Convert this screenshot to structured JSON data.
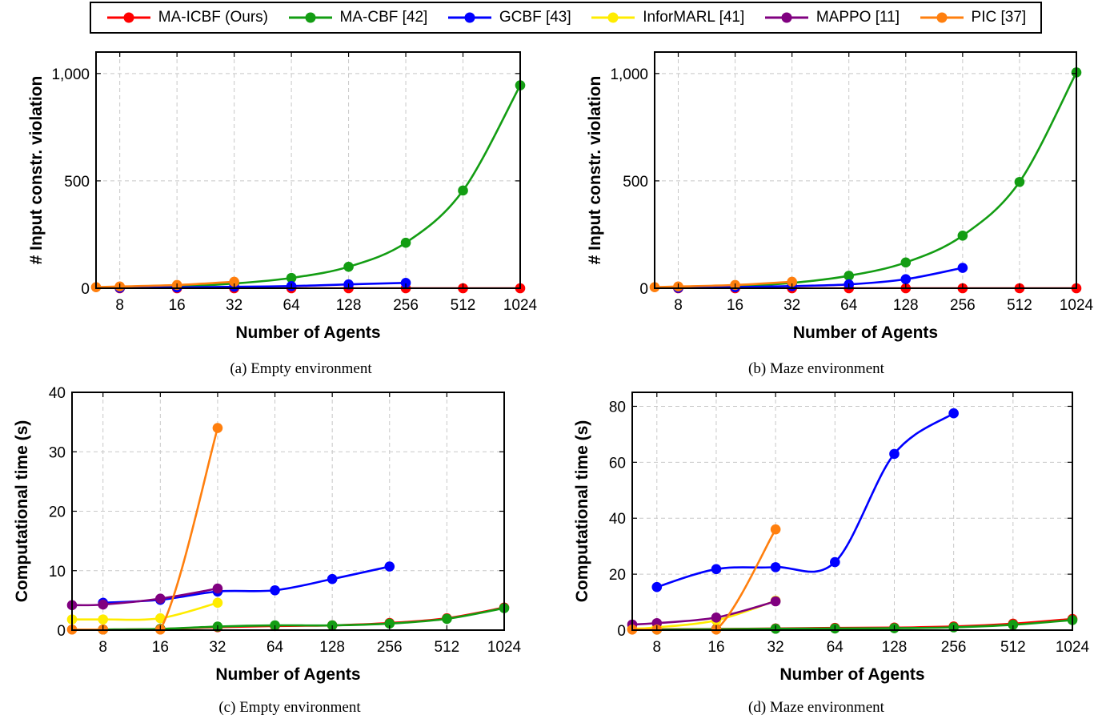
{
  "legend": [
    {
      "name": "MA-ICBF (Ours)",
      "color": "#ff0000"
    },
    {
      "name": "MA-CBF [42]",
      "color": "#139d13"
    },
    {
      "name": "GCBF [43]",
      "color": "#0000ff"
    },
    {
      "name": "InforMARL [41]",
      "color": "#ffec00"
    },
    {
      "name": "MAPPO [11]",
      "color": "#800080"
    },
    {
      "name": "PIC [37]",
      "color": "#ff7f0e"
    }
  ],
  "captions": {
    "a": "(a) Empty environment",
    "b": "(b) Maze environment",
    "c": "(c) Empty environment",
    "d": "(d) Maze environment"
  },
  "chart_data": [
    {
      "id": "a",
      "type": "line",
      "title": "",
      "xlabel": "Number of Agents",
      "ylabel": "# Input constr. violation",
      "xscale": "log2",
      "x_ticks": [
        8,
        16,
        32,
        64,
        128,
        256,
        512,
        1024
      ],
      "xlim": [
        6,
        1024
      ],
      "ylim": [
        0,
        1100
      ],
      "y_ticks": [
        0,
        500,
        1000
      ],
      "y_tick_labels": [
        "0",
        "500",
        "1,000"
      ],
      "grid": true,
      "series": [
        {
          "name": "MA-ICBF (Ours)",
          "color": "#ff0000",
          "x": [
            8,
            16,
            32,
            64,
            128,
            256,
            512,
            1024
          ],
          "y": [
            0,
            0,
            0,
            0,
            0,
            0,
            0,
            0
          ]
        },
        {
          "name": "MA-CBF [42]",
          "color": "#139d13",
          "x": [
            8,
            16,
            32,
            64,
            128,
            256,
            512,
            1024
          ],
          "y": [
            3,
            8,
            22,
            48,
            100,
            212,
            455,
            945
          ]
        },
        {
          "name": "GCBF [43]",
          "color": "#0000ff",
          "x": [
            8,
            16,
            32,
            64,
            128,
            256
          ],
          "y": [
            2,
            4,
            7,
            10,
            18,
            25
          ]
        },
        {
          "name": "PIC [37]",
          "color": "#ff7f0e",
          "x": [
            6,
            8,
            16,
            32
          ],
          "y": [
            5,
            8,
            15,
            30
          ]
        }
      ]
    },
    {
      "id": "b",
      "type": "line",
      "title": "",
      "xlabel": "Number of Agents",
      "ylabel": "# Input constr. violation",
      "xscale": "log2",
      "x_ticks": [
        8,
        16,
        32,
        64,
        128,
        256,
        512,
        1024
      ],
      "xlim": [
        6,
        1024
      ],
      "ylim": [
        0,
        1100
      ],
      "y_ticks": [
        0,
        500,
        1000
      ],
      "y_tick_labels": [
        "0",
        "500",
        "1,000"
      ],
      "grid": true,
      "series": [
        {
          "name": "MA-ICBF (Ours)",
          "color": "#ff0000",
          "x": [
            8,
            16,
            32,
            64,
            128,
            256,
            512,
            1024
          ],
          "y": [
            0,
            0,
            0,
            0,
            0,
            0,
            0,
            0
          ]
        },
        {
          "name": "MA-CBF [42]",
          "color": "#139d13",
          "x": [
            8,
            16,
            32,
            64,
            128,
            256,
            512,
            1024
          ],
          "y": [
            3,
            10,
            25,
            58,
            120,
            245,
            495,
            1005
          ]
        },
        {
          "name": "GCBF [43]",
          "color": "#0000ff",
          "x": [
            8,
            16,
            32,
            64,
            128,
            256
          ],
          "y": [
            2,
            5,
            10,
            18,
            42,
            95
          ]
        },
        {
          "name": "PIC [37]",
          "color": "#ff7f0e",
          "x": [
            6,
            8,
            16,
            32
          ],
          "y": [
            5,
            8,
            15,
            30
          ]
        }
      ]
    },
    {
      "id": "c",
      "type": "line",
      "title": "",
      "xlabel": "Number of Agents",
      "ylabel": "Computational time (s)",
      "xscale": "log2",
      "x_ticks": [
        8,
        16,
        32,
        64,
        128,
        256,
        512,
        1024
      ],
      "xlim": [
        5.5,
        1024
      ],
      "ylim": [
        0,
        40
      ],
      "y_ticks": [
        0,
        10,
        20,
        30,
        40
      ],
      "y_tick_labels": [
        "0",
        "10",
        "20",
        "30",
        "40"
      ],
      "grid": true,
      "series": [
        {
          "name": "MA-ICBF (Ours)",
          "color": "#ff0000",
          "x": [
            8,
            16,
            32,
            64,
            128,
            256,
            512,
            1024
          ],
          "y": [
            0.1,
            0.2,
            0.5,
            0.7,
            0.8,
            1.2,
            2.0,
            3.8
          ]
        },
        {
          "name": "MA-CBF [42]",
          "color": "#139d13",
          "x": [
            8,
            16,
            32,
            64,
            128,
            256,
            512,
            1024
          ],
          "y": [
            0.1,
            0.2,
            0.6,
            0.8,
            0.8,
            1.1,
            1.9,
            3.7
          ]
        },
        {
          "name": "GCBF [43]",
          "color": "#0000ff",
          "x": [
            8,
            16,
            32,
            64,
            128,
            256
          ],
          "y": [
            4.6,
            5.1,
            6.5,
            6.7,
            8.6,
            10.7
          ]
        },
        {
          "name": "InforMARL [41]",
          "color": "#ffec00",
          "x": [
            5.5,
            8,
            16,
            32
          ],
          "y": [
            1.8,
            1.8,
            2.0,
            4.6
          ]
        },
        {
          "name": "MAPPO [11]",
          "color": "#800080",
          "x": [
            5.5,
            8,
            16,
            32
          ],
          "y": [
            4.2,
            4.3,
            5.3,
            7.0
          ]
        },
        {
          "name": "PIC [37]",
          "color": "#ff7f0e",
          "x": [
            5.5,
            8,
            16,
            32
          ],
          "y": [
            0.1,
            0.1,
            0.1,
            34.0
          ]
        }
      ]
    },
    {
      "id": "d",
      "type": "line",
      "title": "",
      "xlabel": "Number of Agents",
      "ylabel": "Computational time (s)",
      "xscale": "log2",
      "x_ticks": [
        8,
        16,
        32,
        64,
        128,
        256,
        512,
        1024
      ],
      "xlim": [
        6,
        1024
      ],
      "ylim": [
        0,
        85
      ],
      "y_ticks": [
        0,
        20,
        40,
        60,
        80
      ],
      "y_tick_labels": [
        "0",
        "20",
        "40",
        "60",
        "80"
      ],
      "grid": true,
      "series": [
        {
          "name": "MA-ICBF (Ours)",
          "color": "#ff0000",
          "x": [
            8,
            16,
            32,
            64,
            128,
            256,
            512,
            1024
          ],
          "y": [
            0.3,
            0.4,
            0.6,
            0.8,
            0.9,
            1.3,
            2.3,
            4.0
          ]
        },
        {
          "name": "MA-CBF [42]",
          "color": "#139d13",
          "x": [
            8,
            16,
            32,
            64,
            128,
            256,
            512,
            1024
          ],
          "y": [
            0.2,
            0.3,
            0.5,
            0.6,
            0.7,
            1.0,
            1.9,
            3.6
          ]
        },
        {
          "name": "GCBF [43]",
          "color": "#0000ff",
          "x": [
            8,
            16,
            32,
            64,
            128,
            256
          ],
          "y": [
            15.4,
            21.8,
            22.5,
            24.3,
            63.0,
            77.5
          ]
        },
        {
          "name": "InforMARL [41]",
          "color": "#ffec00",
          "x": [
            6,
            8,
            16,
            32
          ],
          "y": [
            0.5,
            1.0,
            3.5,
            10.5
          ]
        },
        {
          "name": "MAPPO [11]",
          "color": "#800080",
          "x": [
            6,
            8,
            16,
            32
          ],
          "y": [
            2.0,
            2.5,
            4.5,
            10.3
          ]
        },
        {
          "name": "PIC [37]",
          "color": "#ff7f0e",
          "x": [
            6,
            8,
            16,
            32
          ],
          "y": [
            0.2,
            0.2,
            0.2,
            36.0
          ]
        }
      ]
    }
  ]
}
